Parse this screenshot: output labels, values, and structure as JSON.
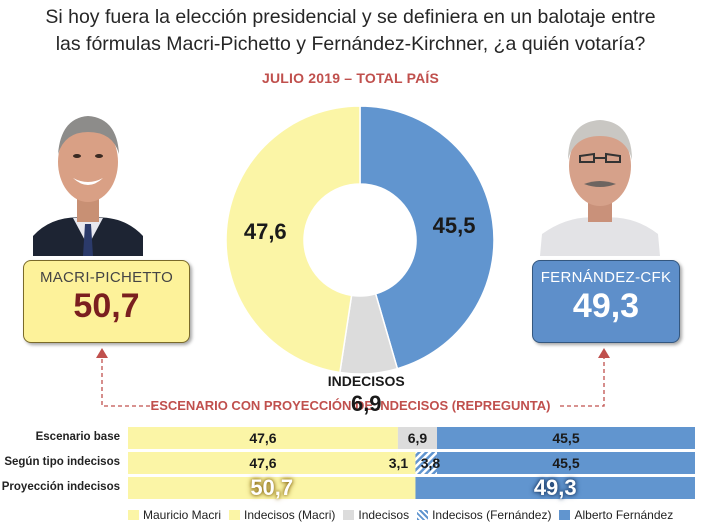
{
  "title_line1": "Si hoy fuera la elección presidencial y se definiera en un balotaje entre",
  "title_line2": "las fórmulas Macri-Pichetto y Fernández-Kirchner, ¿a quién votaría?",
  "subtitle": "JULIO 2019 – TOTAL PAÍS",
  "candidates": {
    "left": {
      "name": "MACRI-PICHETTO",
      "value": "50,7"
    },
    "right": {
      "name": "FERNÁNDEZ-CFK",
      "value": "49,3"
    }
  },
  "colors": {
    "macri": "#fbf5a6",
    "fernandez": "#6195cf",
    "indecisos": "#dcdcdc",
    "arrow": "#c0504d"
  },
  "chart_data": [
    {
      "type": "pie",
      "donut": true,
      "slices": [
        {
          "label": "",
          "value": 45.5,
          "display": "45,5",
          "color": "#6195cf"
        },
        {
          "label": "INDECISOS",
          "value": 6.9,
          "display": "6,9",
          "color": "#dcdcdc"
        },
        {
          "label": "",
          "value": 47.6,
          "display": "47,6",
          "color": "#fbf5a6"
        }
      ]
    },
    {
      "type": "bar",
      "orientation": "horizontal",
      "stacked": true,
      "title": "ESCENARIO CON PROYECCIÓN DE INDECISOS (REPREGUNTA)",
      "categories": [
        "Escenario base",
        "Según tipo indecisos",
        "Proyección indecisos"
      ],
      "series": [
        {
          "name": "Mauricio Macri",
          "values": [
            47.6,
            47.6,
            50.7
          ],
          "labels": [
            "47,6",
            "47,6",
            "50,7"
          ]
        },
        {
          "name": "Indecisos (Macri)",
          "values": [
            0,
            3.1,
            0
          ],
          "labels": [
            "",
            "3,1",
            ""
          ]
        },
        {
          "name": "Indecisos",
          "values": [
            6.9,
            0,
            0
          ],
          "labels": [
            "6,9",
            "",
            ""
          ]
        },
        {
          "name": "Indecisos (Fernández)",
          "values": [
            0,
            3.8,
            0
          ],
          "labels": [
            "",
            "3,8",
            ""
          ]
        },
        {
          "name": "Alberto Fernández",
          "values": [
            45.5,
            45.5,
            49.3
          ],
          "labels": [
            "45,5",
            "45,5",
            "49,3"
          ]
        }
      ],
      "xlim": [
        0,
        100
      ],
      "legend": "bottom"
    }
  ]
}
